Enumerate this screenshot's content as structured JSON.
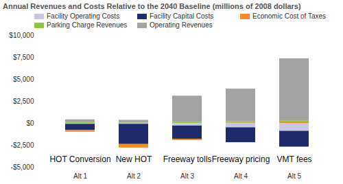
{
  "chart_data": {
    "type": "bar",
    "stacked": true,
    "title": "Annual Revenues and Costs Relative to the 2040 Baseline (millions of 2008 dollars)",
    "categories": [
      "Alt 1",
      "Alt 2",
      "Alt 3",
      "Alt 4",
      "Alt 5"
    ],
    "annotations": [
      "HOT Conversion",
      "New HOT",
      "Freeway tolls",
      "Freeway pricing",
      "VMT fees"
    ],
    "series": [
      {
        "name": "Facility Operating Costs",
        "color": "#c9c6e3",
        "values": [
          -100,
          -100,
          -300,
          -500,
          -900
        ]
      },
      {
        "name": "Facility Capital Costs",
        "color": "#1f2a6b",
        "values": [
          -700,
          -2300,
          -1500,
          -1700,
          -1800
        ]
      },
      {
        "name": "Economic Cost of Taxes",
        "color": "#f28c1e",
        "values": [
          -200,
          -400,
          -150,
          50,
          150
        ]
      },
      {
        "name": "Parking Charge Revenues",
        "color": "#8cc63f",
        "values": [
          150,
          50,
          100,
          150,
          100
        ]
      },
      {
        "name": "Operating Revenues",
        "color": "#a3a3a3",
        "values": [
          250,
          300,
          3000,
          3700,
          7100
        ]
      }
    ],
    "ylim": [
      -5000,
      10000
    ],
    "yticks": [
      {
        "value": -5000,
        "label": "-$5,000"
      },
      {
        "value": -2500,
        "label": "-$2,500"
      },
      {
        "value": 0,
        "label": "$0"
      },
      {
        "value": 2500,
        "label": "$2,500"
      },
      {
        "value": 5000,
        "label": "$5,000"
      },
      {
        "value": 7500,
        "label": "$7,500"
      },
      {
        "value": 10000,
        "label": "$10,000"
      }
    ],
    "grid": false,
    "legend": "top-left"
  }
}
